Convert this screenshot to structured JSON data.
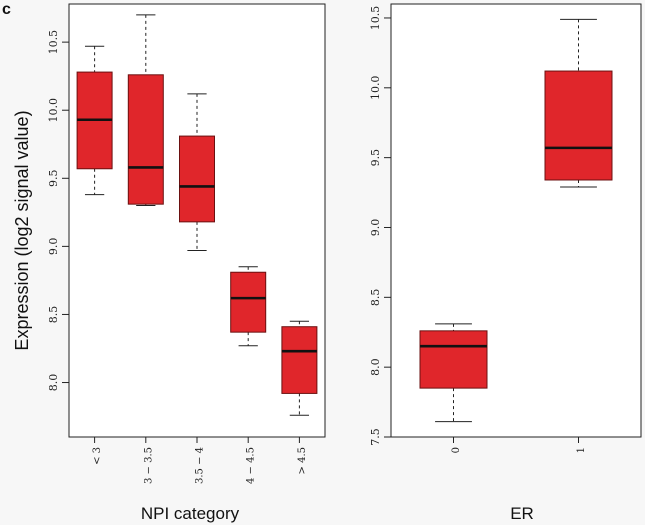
{
  "panel_letter": "c",
  "chart_data": [
    {
      "type": "boxplot",
      "xlabel": "NPI category",
      "ylabel": "Expression  (log2 signal value)",
      "categories": [
        "< 3",
        "3 − 3.5",
        "3.5 − 4",
        "4 − 4.5",
        "> 4.5"
      ],
      "yticks": [
        8.0,
        8.5,
        9.0,
        9.5,
        10.0,
        10.5
      ],
      "ytick_labels": [
        "8.0",
        "8.5",
        "9.0",
        "9.5",
        "10.0",
        "10.5"
      ],
      "ylim": [
        7.6,
        10.78
      ],
      "boxes": [
        {
          "whisker_low": 9.38,
          "q1": 9.57,
          "median": 9.93,
          "q3": 10.28,
          "whisker_high": 10.47
        },
        {
          "whisker_low": 9.3,
          "q1": 9.31,
          "median": 9.58,
          "q3": 10.26,
          "whisker_high": 10.7
        },
        {
          "whisker_low": 8.97,
          "q1": 9.18,
          "median": 9.44,
          "q3": 9.81,
          "whisker_high": 10.12
        },
        {
          "whisker_low": 8.27,
          "q1": 8.37,
          "median": 8.62,
          "q3": 8.81,
          "whisker_high": 8.85
        },
        {
          "whisker_low": 7.76,
          "q1": 7.92,
          "median": 8.23,
          "q3": 8.41,
          "whisker_high": 8.45
        }
      ],
      "box_color": "#e0262b",
      "grid": false
    },
    {
      "type": "boxplot",
      "xlabel": "ER",
      "ylabel": "",
      "categories": [
        "0",
        "1"
      ],
      "yticks": [
        7.5,
        8.0,
        8.5,
        9.0,
        9.5,
        10.0,
        10.5
      ],
      "ytick_labels": [
        "7.5",
        "8.0",
        "8.5",
        "9.0",
        "9.5",
        "10.0",
        "10.5"
      ],
      "ylim": [
        7.5,
        10.6
      ],
      "boxes": [
        {
          "whisker_low": 7.61,
          "q1": 7.85,
          "median": 8.15,
          "q3": 8.26,
          "whisker_high": 8.31
        },
        {
          "whisker_low": 9.29,
          "q1": 9.34,
          "median": 9.57,
          "q3": 10.12,
          "whisker_high": 10.49
        }
      ],
      "box_color": "#e0262b",
      "grid": false
    }
  ]
}
